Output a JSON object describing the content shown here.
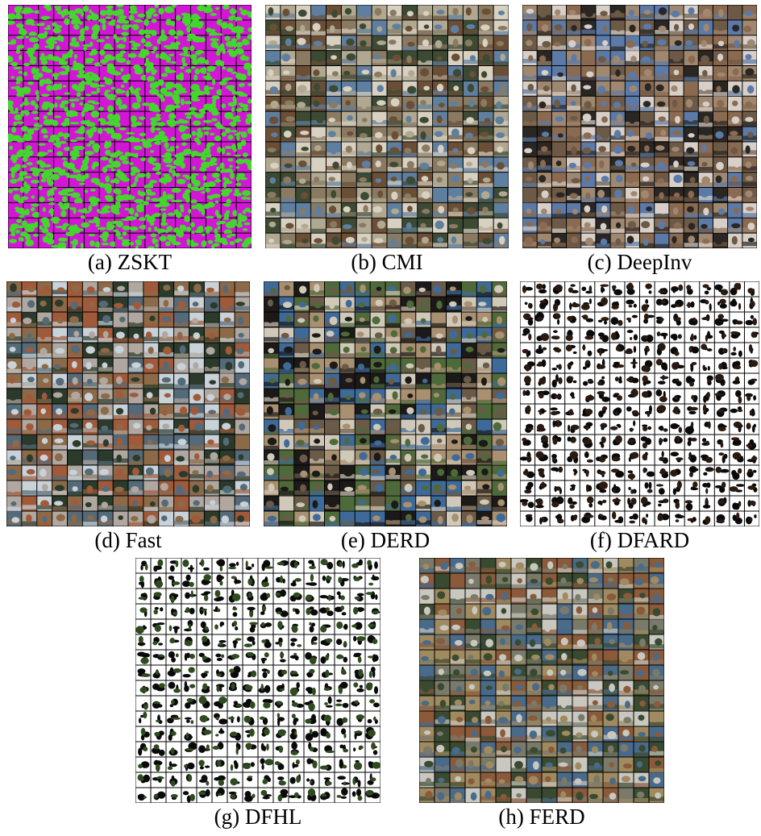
{
  "figure": {
    "panels": [
      {
        "id": "zskt",
        "caption": "(a) ZSKT",
        "style": "noise",
        "colors": [
          "#d316d6",
          "#43d62c"
        ]
      },
      {
        "id": "cmi",
        "caption": "(b) CMI",
        "style": "natural",
        "colors": [
          "#8a7a62",
          "#5f7fa0",
          "#3c4a34",
          "#b0a890",
          "#d8d0c0",
          "#6b4e36"
        ]
      },
      {
        "id": "deepinv",
        "caption": "(c) DeepInv",
        "style": "natural",
        "colors": [
          "#2a2623",
          "#a08870",
          "#6d5a46",
          "#d8d0c8",
          "#5b7aa8",
          "#8a6a50"
        ]
      },
      {
        "id": "fast",
        "caption": "(d) Fast",
        "style": "natural",
        "colors": [
          "#556a78",
          "#2b3a2a",
          "#b0a8a0",
          "#8c6a48",
          "#c8d2d8",
          "#a05a3a"
        ]
      },
      {
        "id": "derd",
        "caption": "(e) DERD",
        "style": "natural",
        "colors": [
          "#1c1a18",
          "#6a5a48",
          "#3e6a9a",
          "#a89070",
          "#d0c8b8",
          "#4f6a3a"
        ]
      },
      {
        "id": "dfard",
        "caption": "(f) DFARD",
        "style": "blob",
        "colors": [
          "#ffffff",
          "#0a0a0a",
          "#2a1a10"
        ]
      },
      {
        "id": "dfhl",
        "caption": "(g) DFHL",
        "style": "blob",
        "colors": [
          "#ffffff",
          "#0a0a0a",
          "#2e4a1e"
        ]
      },
      {
        "id": "ferd",
        "caption": "(h) FERD",
        "style": "natural",
        "colors": [
          "#7a7a6a",
          "#4a6a8a",
          "#8a5a3a",
          "#c8c8c0",
          "#3a4a30",
          "#a08a60"
        ]
      }
    ]
  }
}
